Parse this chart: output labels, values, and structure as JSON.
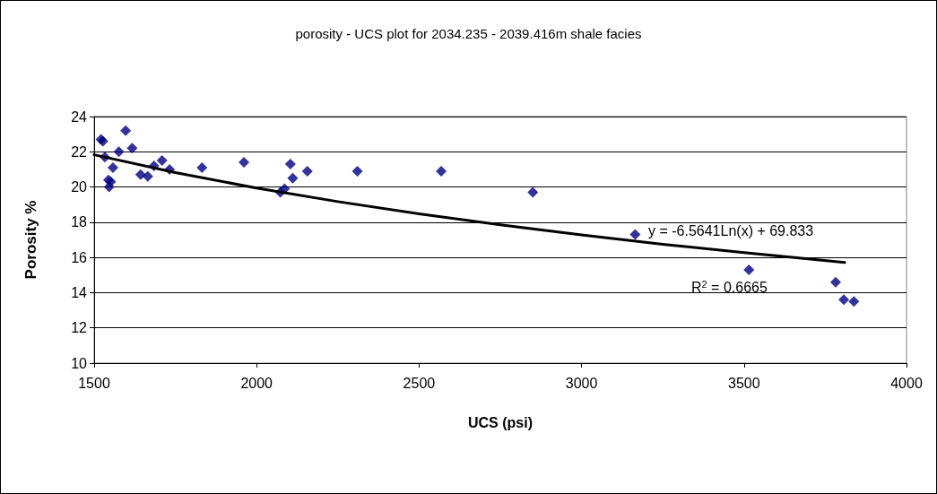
{
  "chart_data": {
    "type": "scatter",
    "title": "porosity - UCS plot for 2034.235 - 2039.416m shale facies",
    "xlabel": "UCS (psi)",
    "ylabel": "Porosity %",
    "series": [
      {
        "color": "#000080",
        "marker": "diamond",
        "x": [
          1521,
          1527,
          1533,
          1576,
          1597,
          1617,
          1558,
          1544,
          1551,
          1546,
          1643,
          1665,
          1684,
          1709,
          1732,
          1832,
          1961,
          2073,
          2086,
          2104,
          2111,
          2156,
          2310,
          2568,
          2850,
          3165,
          3515,
          3782,
          3807,
          3838
        ],
        "values": [
          22.7,
          22.6,
          21.7,
          22.0,
          23.2,
          22.2,
          21.1,
          20.4,
          20.3,
          20.0,
          20.7,
          20.6,
          21.2,
          21.5,
          21.0,
          21.1,
          21.4,
          19.7,
          19.9,
          21.3,
          20.5,
          20.9,
          20.9,
          20.9,
          19.7,
          17.3,
          15.3,
          14.6,
          13.6,
          13.5
        ]
      },
      {
        "type": "line",
        "color": "#000000",
        "marker": "none",
        "x": [
          1500,
          1750,
          2000,
          2250,
          2500,
          2750,
          3000,
          3250,
          3500,
          3810
        ],
        "values": [
          21.83,
          20.82,
          19.94,
          19.17,
          18.48,
          17.85,
          17.28,
          16.75,
          16.27,
          15.71
        ]
      }
    ],
    "annotations": [
      "y = -6.5641Ln(x) + 69.833",
      "R$^{2}$ = 0.6665"
    ],
    "xlim": [
      1500,
      4000
    ],
    "xticks": [
      1500,
      2000,
      2500,
      3000,
      3500,
      4000
    ],
    "ylim": [
      10,
      24
    ],
    "yticks": [
      10,
      12,
      14,
      16,
      18,
      20,
      22,
      24
    ],
    "grid": "y",
    "legend": false
  }
}
